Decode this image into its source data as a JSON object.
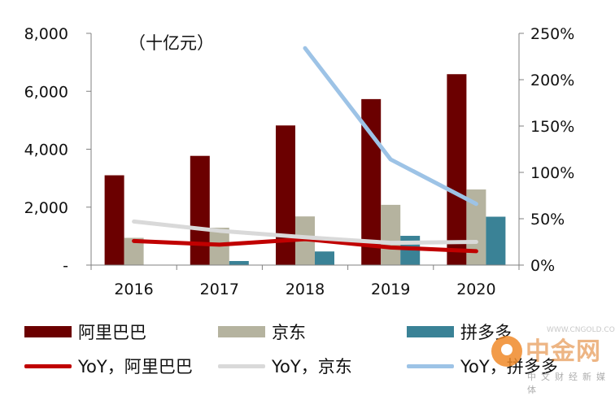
{
  "chart_data": {
    "type": "bar",
    "unit_label": "（十亿元）",
    "categories": [
      "2016",
      "2017",
      "2018",
      "2019",
      "2020"
    ],
    "y_left": {
      "min": 0,
      "max": 8000,
      "ticks": [
        0,
        2000,
        4000,
        6000,
        8000
      ],
      "tick_labels": [
        "-",
        "2,000",
        "4,000",
        "6,000",
        "8,000"
      ]
    },
    "y_right": {
      "min": 0,
      "max": 250,
      "ticks": [
        0,
        50,
        100,
        150,
        200,
        250
      ],
      "tick_labels": [
        "0%",
        "50%",
        "100%",
        "150%",
        "200%",
        "250%"
      ]
    },
    "bar_series": [
      {
        "name": "阿里巴巴",
        "color": "#6b0000",
        "values": [
          3100,
          3770,
          4820,
          5730,
          6590
        ]
      },
      {
        "name": "京东",
        "color": "#b5b39f",
        "values": [
          940,
          1290,
          1680,
          2080,
          2610
        ]
      },
      {
        "name": "拼多多",
        "color": "#3a8296",
        "values": [
          null,
          140,
          470,
          1010,
          1670
        ]
      }
    ],
    "line_series": [
      {
        "name": "YoY，阿里巴巴",
        "color": "#c00000",
        "values": [
          26,
          22,
          28,
          19,
          15
        ]
      },
      {
        "name": "YoY，京东",
        "color": "#d9d9d9",
        "values": [
          47,
          37,
          30,
          24,
          25
        ]
      },
      {
        "name": "YoY，拼多多",
        "color": "#9dc3e6",
        "values": [
          null,
          null,
          234,
          114,
          66
        ]
      }
    ],
    "grid": false,
    "legend_position": "bottom"
  },
  "watermark": {
    "title": "中金网",
    "subtitle": "中文财经新媒体",
    "url": "WWW.CNGOLD.COM.CN"
  }
}
